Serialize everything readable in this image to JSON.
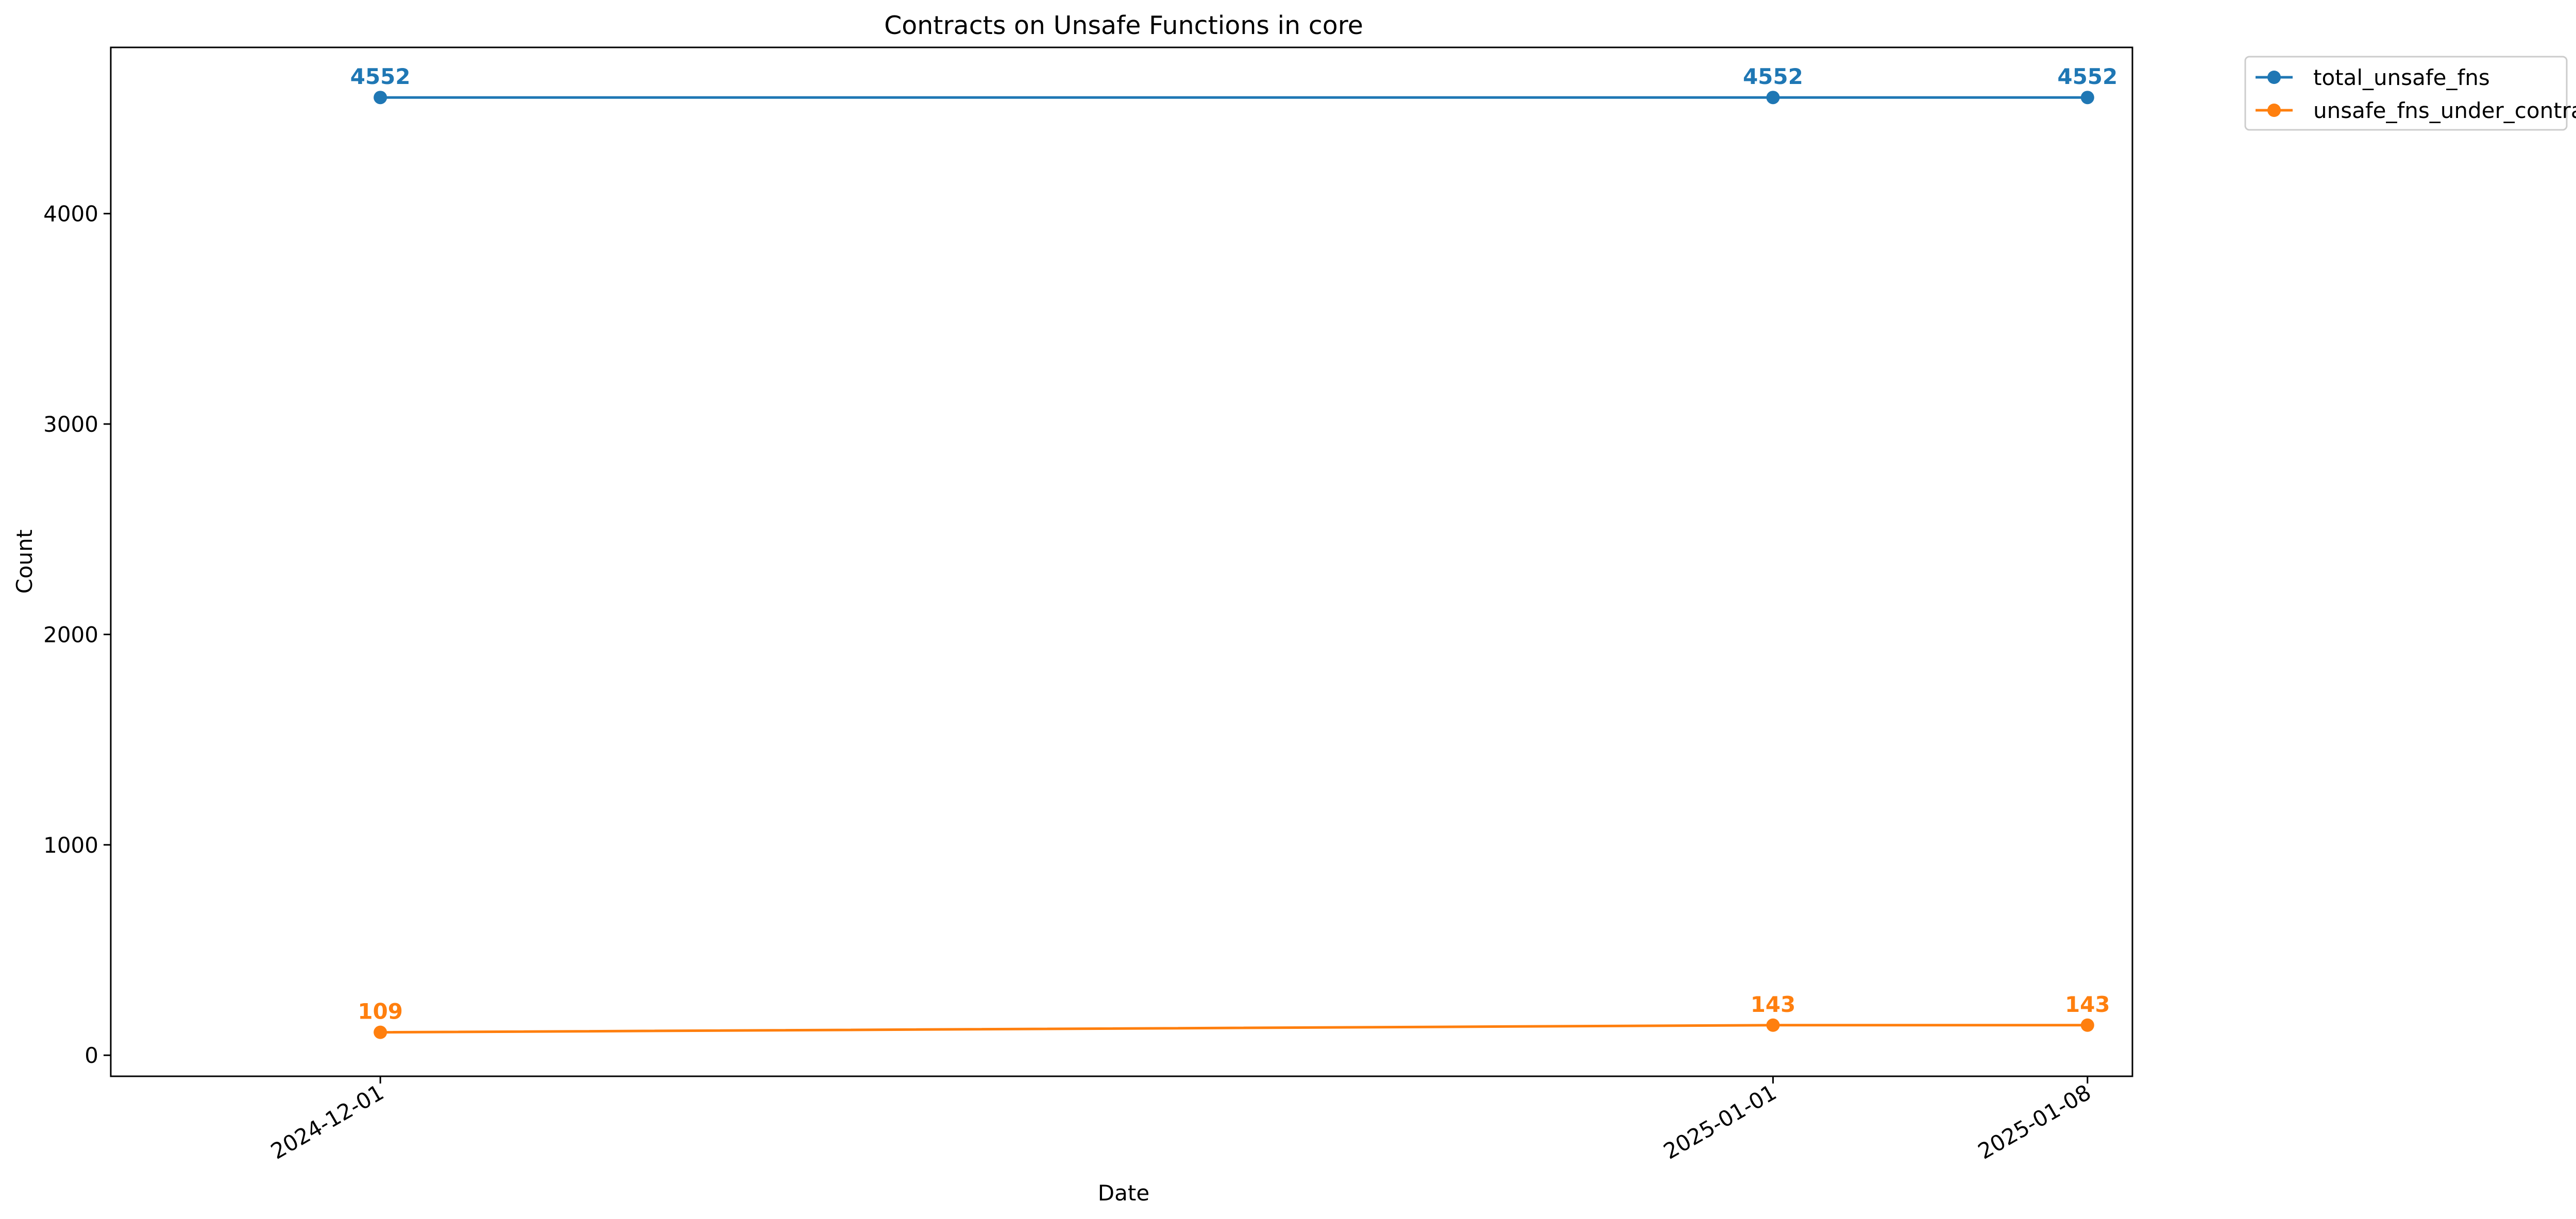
{
  "chart_data": {
    "type": "line",
    "title": "Contracts on Unsafe Functions in core",
    "xlabel": "Date",
    "ylabel": "Count",
    "x": [
      "2024-12-01",
      "2025-01-01",
      "2025-01-08"
    ],
    "x_tick_labels": [
      "2024-12-01",
      "2025-01-01",
      "2025-01-08"
    ],
    "xlim": [
      "2024-11-25",
      "2025-01-09"
    ],
    "ylim": [
      -100,
      4790
    ],
    "y_ticks": [
      0,
      1000,
      2000,
      3000,
      4000
    ],
    "grid": false,
    "legend": "outside-top-right",
    "series": [
      {
        "name": "total_unsafe_fns",
        "values": [
          4552,
          4552,
          4552
        ],
        "color": "#1f77b4",
        "marker": "circle"
      },
      {
        "name": "unsafe_fns_under_contract",
        "values": [
          109,
          143,
          143
        ],
        "color": "#ff7f0e",
        "marker": "circle"
      }
    ]
  }
}
